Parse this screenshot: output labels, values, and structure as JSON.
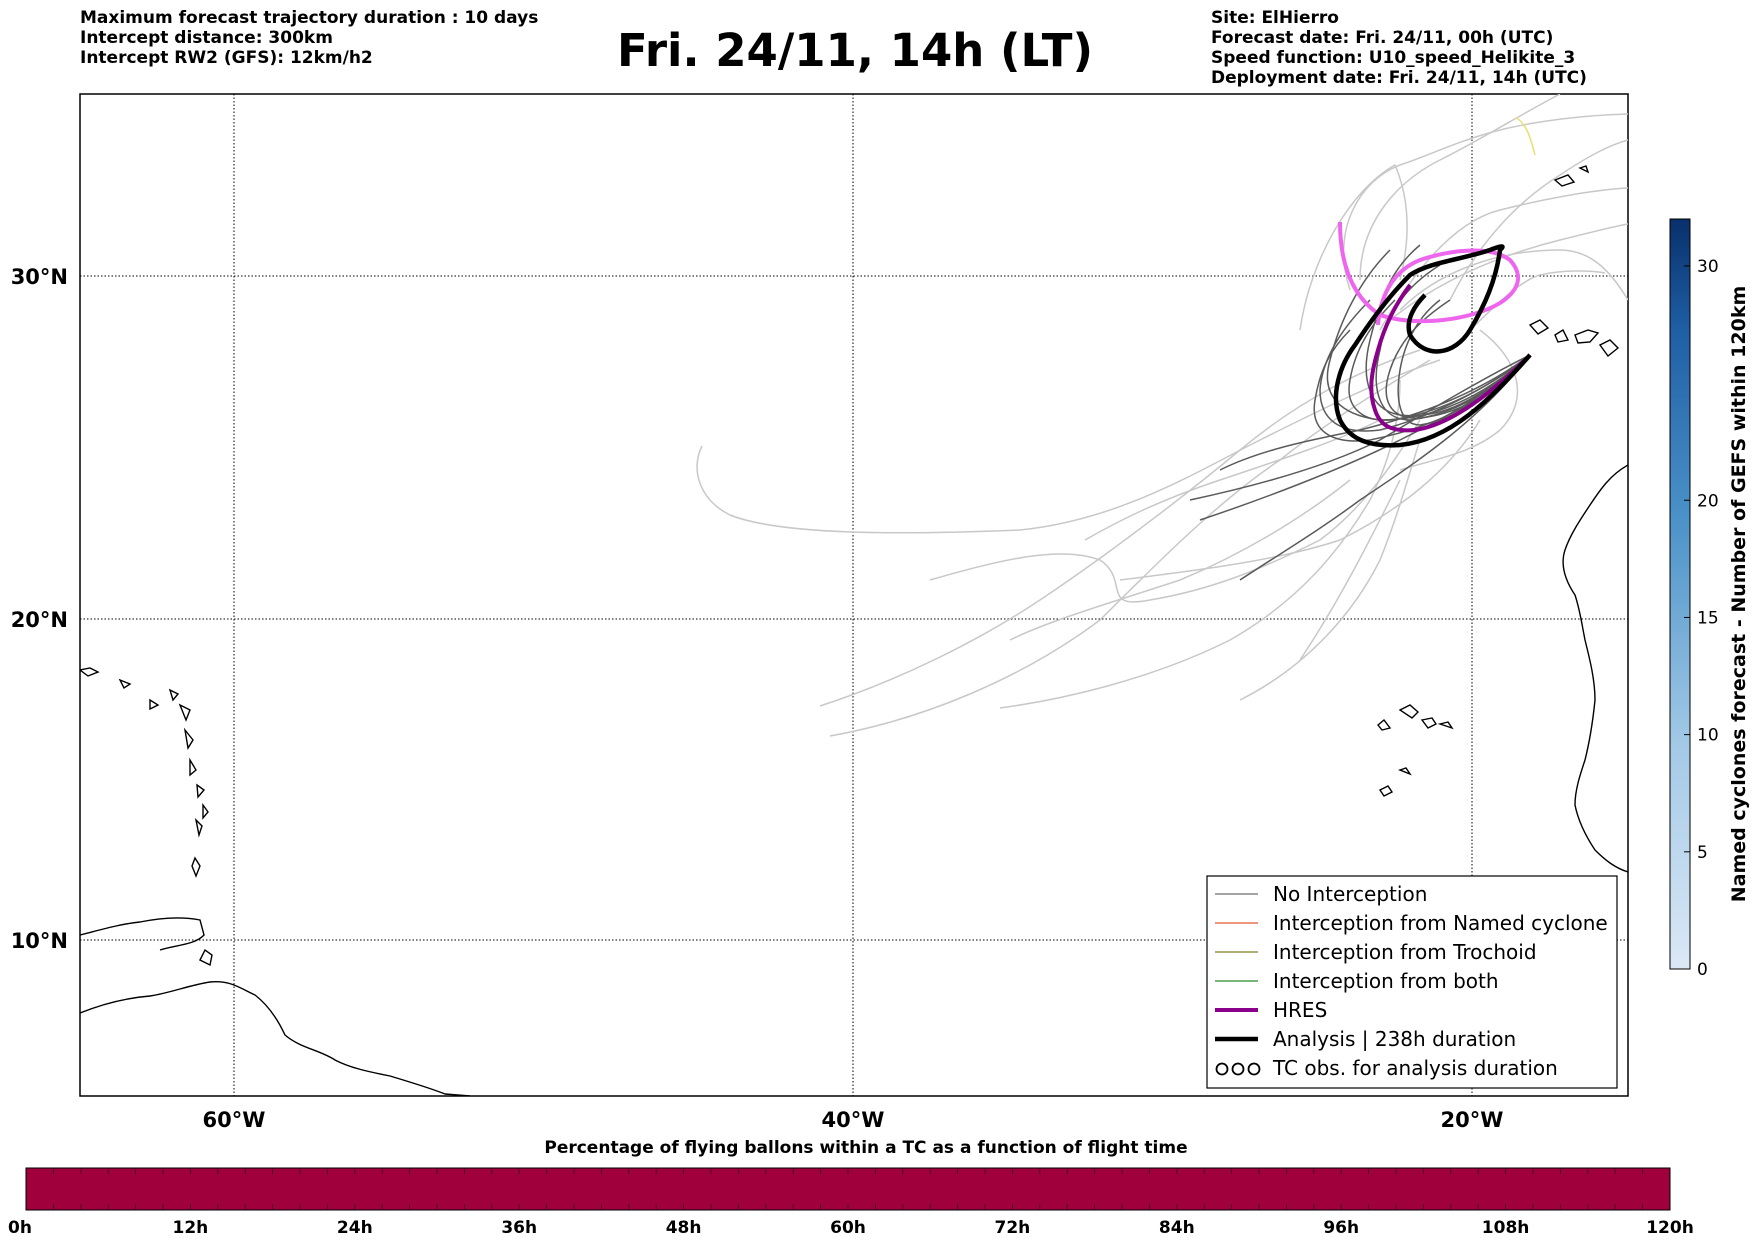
{
  "header": {
    "left_lines": [
      "Maximum forecast trajectory duration : 10 days",
      "Intercept distance: 300km",
      "Intercept RW2 (GFS):  12km/h2"
    ],
    "title": "Fri. 24/11, 14h (LT)",
    "right_lines": [
      "Site: ElHierro",
      "Forecast date: Fri. 24/11, 00h (UTC)",
      "Speed function: U10_speed_Helikite_3",
      "Deployment date: Fri. 24/11, 14h (UTC)"
    ]
  },
  "map": {
    "lat_labels": [
      "30°N",
      "20°N",
      "10°N"
    ],
    "lon_labels": [
      "60°W",
      "40°W",
      "20°W"
    ],
    "lat_values": [
      30,
      20,
      10
    ],
    "lon_values": [
      -60,
      -40,
      -20
    ],
    "grid": true,
    "colors": {
      "ensemble_no_interception": "#5a5a5a",
      "ensemble_light": "#c8c8c8",
      "hres": "#8b008b",
      "hres_light": "#ee66ee",
      "analysis": "#000000",
      "yellow_track": "#e8e070"
    }
  },
  "legend": {
    "items": [
      {
        "label": "No Interception",
        "color": "#6e6e6e",
        "style": "thin"
      },
      {
        "label": "Interception from Named cyclone",
        "color": "#e4572e",
        "style": "thin"
      },
      {
        "label": "Interception from Trochoid",
        "color": "#808020",
        "style": "thin"
      },
      {
        "label": "Interception from both",
        "color": "#2a8a2a",
        "style": "thin"
      },
      {
        "label": "HRES",
        "color": "#8b008b",
        "style": "medium"
      },
      {
        "label": "Analysis | 238h duration",
        "color": "#000000",
        "style": "thick"
      },
      {
        "label": "TC obs. for analysis duration",
        "color": "#000000",
        "style": "symbol"
      }
    ]
  },
  "colorbar_right": {
    "label": "Named cyclones forecast - Number of GEFS within 120km",
    "ticks": [
      "0",
      "5",
      "10",
      "15",
      "20",
      "30"
    ],
    "tick_values": [
      0,
      5,
      10,
      15,
      20,
      30
    ],
    "max": 32
  },
  "colorbar_bottom": {
    "label": "Percentage of flying ballons within a TC as a function of flight time",
    "ticks": [
      "0h",
      "12h",
      "24h",
      "36h",
      "48h",
      "60h",
      "72h",
      "84h",
      "96h",
      "108h",
      "120h"
    ],
    "fill_color": "#a0003c"
  }
}
